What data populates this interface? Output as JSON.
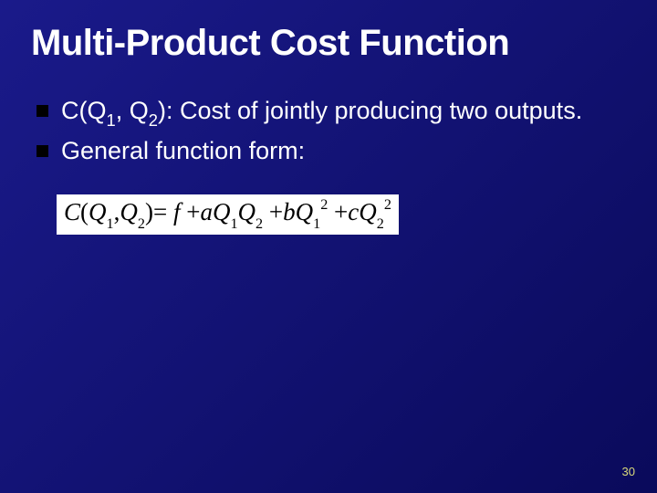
{
  "slide": {
    "background_gradient": [
      "#1a1a8a",
      "#0a0a5b"
    ],
    "title": "Multi-Product Cost Function",
    "title_color": "#ffffff",
    "title_fontsize": 40,
    "bullets": [
      {
        "marker_color": "#000000",
        "prefix": "C(Q",
        "sub1": "1",
        "mid": ", Q",
        "sub2": "2",
        "suffix": "):  Cost of jointly producing two outputs."
      },
      {
        "marker_color": "#000000",
        "text": "General function form:"
      }
    ],
    "bullet_fontsize": 27,
    "bullet_text_color": "#ffffff",
    "equation": {
      "background": "#ffffff",
      "text_color": "#000000",
      "font_family": "Times New Roman",
      "fontsize": 27,
      "lhs_C": "C",
      "lparen": "(",
      "Q": "Q",
      "sub1": "1",
      "comma": ",",
      "sub2": "2",
      "rparen": ")",
      "eq": "=",
      "f": "f",
      "plus": "+",
      "a": "a",
      "b": "b",
      "c": "c",
      "sup2": "2"
    },
    "page_number": "30",
    "page_number_color": "#d9d97a",
    "page_number_fontsize": 13
  }
}
